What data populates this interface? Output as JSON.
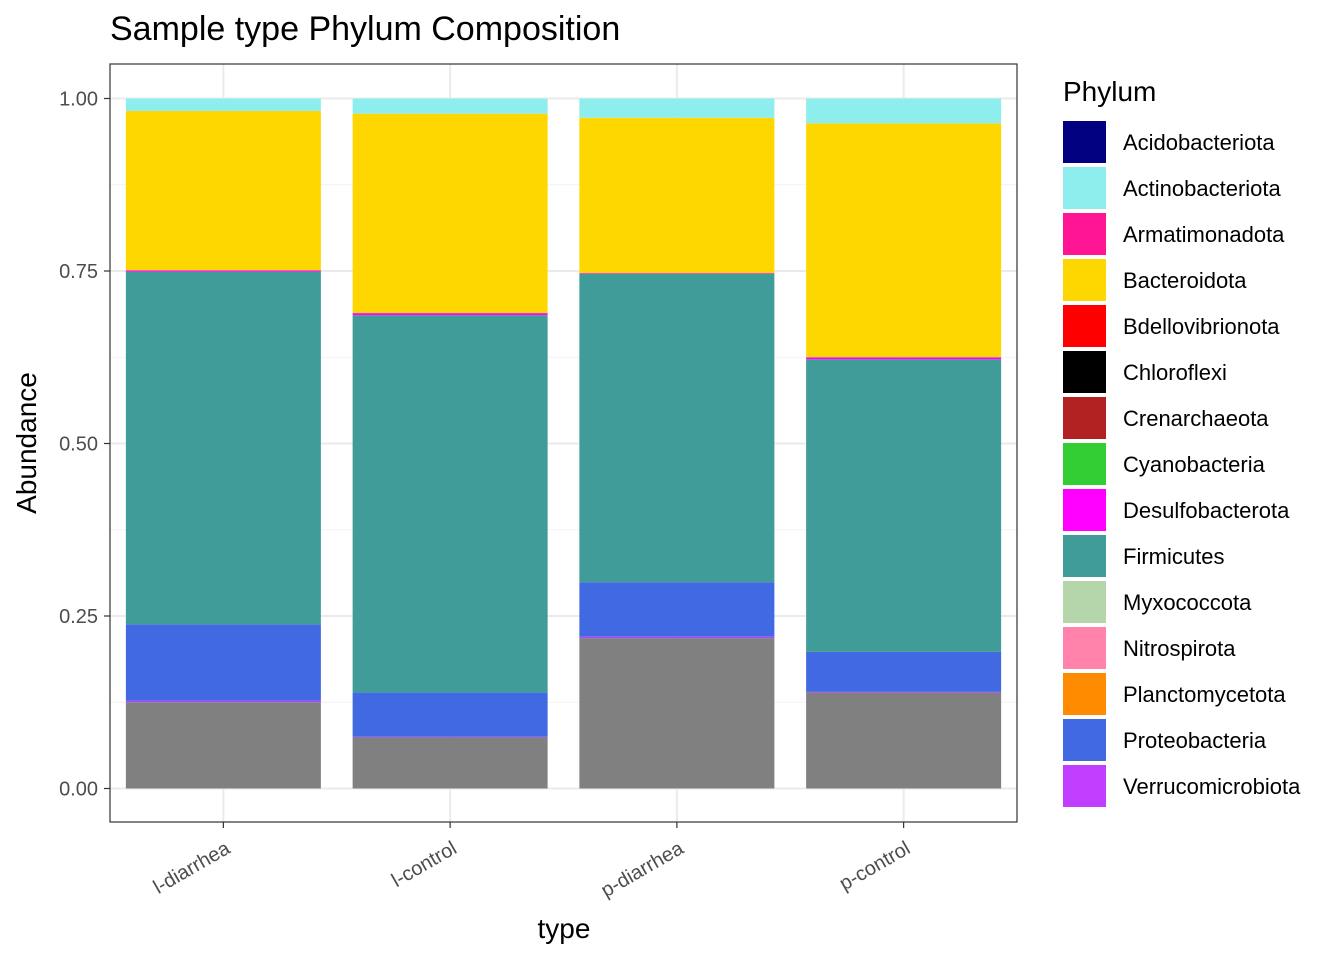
{
  "chart_data": {
    "type": "bar",
    "stacked": true,
    "title": "Sample type Phylum Composition",
    "xlabel": "type",
    "ylabel": "Abundance",
    "ylim": [
      0,
      1.05
    ],
    "yticks": [
      "0.00",
      "0.25",
      "0.50",
      "0.75",
      "1.00"
    ],
    "grid": true,
    "legend_position": "right",
    "legend_title": "Phylum",
    "categories": [
      "l-diarrhea",
      "l-control",
      "p-diarrhea",
      "p-control"
    ],
    "series": [
      {
        "name": "Acidobacteriota",
        "color": "#000080",
        "values": [
          0,
          0,
          0,
          0
        ]
      },
      {
        "name": "Actinobacteriota",
        "color": "#8EEEEE",
        "values": [
          0.018,
          0.022,
          0.028,
          0.036
        ]
      },
      {
        "name": "Armatimonadota",
        "color": "#FF1493",
        "values": [
          0,
          0,
          0,
          0
        ]
      },
      {
        "name": "Bacteroidota",
        "color": "#FFD700",
        "values": [
          0.231,
          0.289,
          0.225,
          0.339
        ]
      },
      {
        "name": "Bdellovibrionota",
        "color": "#FF0000",
        "values": [
          0,
          0,
          0,
          0
        ]
      },
      {
        "name": "Chloroflexi",
        "color": "#000000",
        "values": [
          0,
          0,
          0,
          0
        ]
      },
      {
        "name": "Crenarchaeota",
        "color": "#B22222",
        "values": [
          0,
          0,
          0,
          0
        ]
      },
      {
        "name": "Cyanobacteria",
        "color": "#32CD32",
        "values": [
          0,
          0,
          0,
          0
        ]
      },
      {
        "name": "Desulfobacterota",
        "color": "#FF00FF",
        "values": [
          0.002,
          0.003,
          0.001,
          0.003
        ]
      },
      {
        "name": "Firmicutes",
        "color": "#409C98",
        "values": [
          0.511,
          0.547,
          0.447,
          0.424
        ]
      },
      {
        "name": "Myxococcota",
        "color": "#B5D6AA",
        "values": [
          0,
          0,
          0,
          0
        ]
      },
      {
        "name": "Nitrospirota",
        "color": "#FF83AB",
        "values": [
          0,
          0,
          0,
          0
        ]
      },
      {
        "name": "Planctomycetota",
        "color": "#FF8C00",
        "values": [
          0,
          0,
          0,
          0
        ]
      },
      {
        "name": "Proteobacteria",
        "color": "#4169E1",
        "values": [
          0.111,
          0.064,
          0.079,
          0.058
        ]
      },
      {
        "name": "Verrucomicrobiota",
        "color": "#BF3EFF",
        "values": [
          0.002,
          0.001,
          0.002,
          0.001
        ]
      },
      {
        "name": "",
        "color": "#808080",
        "values": [
          0.125,
          0.074,
          0.218,
          0.139
        ]
      }
    ]
  }
}
